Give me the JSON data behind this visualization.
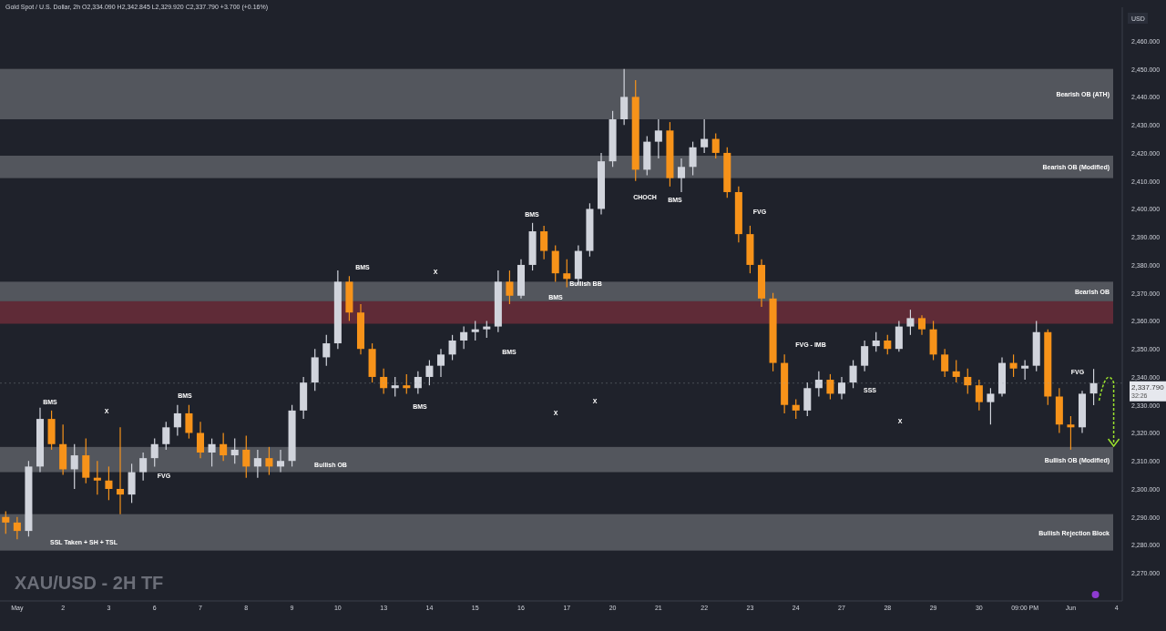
{
  "chart_data": {
    "type": "candlestick",
    "title": "XAU/USD - 2H TF",
    "subtitle": "Gold Spot / U.S. Dollar, 2h  O2,334.090 H2,342.845 L2,329.920 C2,337.790 +3.700 (+0.16%)",
    "ylabel": "USD",
    "categories": [
      null,
      "May",
      null,
      null,
      null,
      "2",
      null,
      null,
      null,
      "3",
      null,
      null,
      null,
      "6",
      null,
      null,
      null,
      "7",
      null,
      null,
      null,
      "8",
      null,
      null,
      null,
      "9",
      null,
      null,
      null,
      "10",
      null,
      null,
      null,
      "13",
      null,
      null,
      null,
      "14",
      null,
      null,
      null,
      "15",
      null,
      null,
      null,
      "16",
      null,
      null,
      null,
      "17",
      null,
      null,
      null,
      "20",
      null,
      null,
      null,
      "21",
      null,
      null,
      null,
      "22",
      null,
      null,
      null,
      "23",
      null,
      null,
      null,
      "24",
      null,
      null,
      null,
      "27",
      null,
      null,
      null,
      "28",
      null,
      null,
      null,
      "29",
      null,
      null,
      null,
      "30",
      null,
      null,
      null,
      "09:00 PM",
      null,
      null,
      null,
      "Jun",
      null,
      null,
      null,
      "4"
    ],
    "ohlc": [
      [
        2290,
        2292,
        2284,
        2288
      ],
      [
        2288,
        2290,
        2282,
        2285
      ],
      [
        2285,
        2310,
        2283,
        2308
      ],
      [
        2308,
        2329,
        2306,
        2325
      ],
      [
        2325,
        2328,
        2314,
        2316
      ],
      [
        2316,
        2323,
        2305,
        2307
      ],
      [
        2307,
        2316,
        2300,
        2312
      ],
      [
        2312,
        2318,
        2302,
        2304
      ],
      [
        2304,
        2310,
        2298,
        2303
      ],
      [
        2303,
        2308,
        2296,
        2300
      ],
      [
        2300,
        2322,
        2291,
        2298
      ],
      [
        2298,
        2309,
        2295,
        2306
      ],
      [
        2306,
        2313,
        2303,
        2311
      ],
      [
        2311,
        2318,
        2308,
        2316
      ],
      [
        2316,
        2324,
        2314,
        2322
      ],
      [
        2322,
        2330,
        2319,
        2327
      ],
      [
        2327,
        2330,
        2318,
        2320
      ],
      [
        2320,
        2324,
        2311,
        2313
      ],
      [
        2313,
        2318,
        2308,
        2316
      ],
      [
        2316,
        2320,
        2310,
        2312
      ],
      [
        2312,
        2318,
        2309,
        2314
      ],
      [
        2314,
        2319,
        2304,
        2308
      ],
      [
        2308,
        2314,
        2304,
        2311
      ],
      [
        2311,
        2315,
        2305,
        2308
      ],
      [
        2308,
        2314,
        2306,
        2310
      ],
      [
        2310,
        2330,
        2308,
        2328
      ],
      [
        2328,
        2340,
        2325,
        2338
      ],
      [
        2338,
        2350,
        2335,
        2347
      ],
      [
        2347,
        2355,
        2344,
        2352
      ],
      [
        2352,
        2378,
        2350,
        2374
      ],
      [
        2374,
        2376,
        2360,
        2363
      ],
      [
        2363,
        2366,
        2348,
        2350
      ],
      [
        2350,
        2352,
        2338,
        2340
      ],
      [
        2340,
        2343,
        2334,
        2336
      ],
      [
        2336,
        2340,
        2333,
        2337
      ],
      [
        2337,
        2341,
        2334,
        2336
      ],
      [
        2336,
        2342,
        2334,
        2340
      ],
      [
        2340,
        2346,
        2337,
        2344
      ],
      [
        2344,
        2350,
        2340,
        2348
      ],
      [
        2348,
        2355,
        2346,
        2353
      ],
      [
        2353,
        2358,
        2350,
        2356
      ],
      [
        2356,
        2360,
        2353,
        2357
      ],
      [
        2357,
        2360,
        2354,
        2358
      ],
      [
        2358,
        2378,
        2356,
        2374
      ],
      [
        2374,
        2378,
        2366,
        2369
      ],
      [
        2369,
        2382,
        2368,
        2380
      ],
      [
        2380,
        2395,
        2378,
        2392
      ],
      [
        2392,
        2394,
        2382,
        2385
      ],
      [
        2385,
        2387,
        2374,
        2377
      ],
      [
        2377,
        2382,
        2372,
        2375
      ],
      [
        2375,
        2387,
        2373,
        2385
      ],
      [
        2385,
        2402,
        2383,
        2400
      ],
      [
        2400,
        2420,
        2398,
        2417
      ],
      [
        2417,
        2435,
        2415,
        2432
      ],
      [
        2432,
        2450,
        2430,
        2440
      ],
      [
        2440,
        2446,
        2410,
        2414
      ],
      [
        2414,
        2426,
        2412,
        2424
      ],
      [
        2424,
        2432,
        2418,
        2428
      ],
      [
        2428,
        2431,
        2408,
        2411
      ],
      [
        2411,
        2418,
        2406,
        2415
      ],
      [
        2415,
        2424,
        2412,
        2422
      ],
      [
        2422,
        2432,
        2420,
        2425
      ],
      [
        2425,
        2427,
        2418,
        2420
      ],
      [
        2420,
        2422,
        2404,
        2406
      ],
      [
        2406,
        2408,
        2388,
        2391
      ],
      [
        2391,
        2394,
        2377,
        2380
      ],
      [
        2380,
        2382,
        2365,
        2368
      ],
      [
        2368,
        2370,
        2342,
        2345
      ],
      [
        2345,
        2348,
        2327,
        2330
      ],
      [
        2330,
        2332,
        2325,
        2328
      ],
      [
        2328,
        2338,
        2326,
        2336
      ],
      [
        2336,
        2342,
        2333,
        2339
      ],
      [
        2339,
        2341,
        2332,
        2334
      ],
      [
        2334,
        2340,
        2332,
        2338
      ],
      [
        2338,
        2346,
        2336,
        2344
      ],
      [
        2344,
        2353,
        2342,
        2351
      ],
      [
        2351,
        2356,
        2349,
        2353
      ],
      [
        2353,
        2355,
        2348,
        2350
      ],
      [
        2350,
        2360,
        2349,
        2358
      ],
      [
        2358,
        2364,
        2355,
        2361
      ],
      [
        2361,
        2362,
        2355,
        2357
      ],
      [
        2357,
        2360,
        2346,
        2348
      ],
      [
        2348,
        2350,
        2340,
        2342
      ],
      [
        2342,
        2346,
        2338,
        2340
      ],
      [
        2340,
        2343,
        2334,
        2337
      ],
      [
        2337,
        2339,
        2328,
        2331
      ],
      [
        2331,
        2336,
        2323,
        2334
      ],
      [
        2334,
        2347,
        2333,
        2345
      ],
      [
        2345,
        2348,
        2340,
        2343
      ],
      [
        2343,
        2346,
        2339,
        2344
      ],
      [
        2344,
        2360,
        2342,
        2356
      ],
      [
        2356,
        2357,
        2330,
        2333
      ],
      [
        2333,
        2336,
        2320,
        2323
      ],
      [
        2323,
        2326,
        2314,
        2322
      ],
      [
        2322,
        2335,
        2320,
        2334
      ],
      [
        2334.09,
        2342.845,
        2329.92,
        2337.79
      ],
      null,
      null
    ],
    "ylim": [
      2260,
      2472
    ],
    "yticks": [
      {
        "value": 2270,
        "label": "2,270.000"
      },
      {
        "value": 2280,
        "label": "2,280.000"
      },
      {
        "value": 2290,
        "label": "2,290.000"
      },
      {
        "value": 2300,
        "label": "2,300.000"
      },
      {
        "value": 2310,
        "label": "2,310.000"
      },
      {
        "value": 2320,
        "label": "2,320.000"
      },
      {
        "value": 2330,
        "label": "2,330.000"
      },
      {
        "value": 2340,
        "label": "2,340.000"
      },
      {
        "value": 2350,
        "label": "2,350.000"
      },
      {
        "value": 2360,
        "label": "2,360.000"
      },
      {
        "value": 2370,
        "label": "2,370.000"
      },
      {
        "value": 2380,
        "label": "2,380.000"
      },
      {
        "value": 2390,
        "label": "2,390.000"
      },
      {
        "value": 2400,
        "label": "2,400.000"
      },
      {
        "value": 2410,
        "label": "2,410.000"
      },
      {
        "value": 2420,
        "label": "2,420.000"
      },
      {
        "value": 2430,
        "label": "2,430.000"
      },
      {
        "value": 2440,
        "label": "2,440.000"
      },
      {
        "value": 2450,
        "label": "2,450.000"
      },
      {
        "value": 2460,
        "label": "2,460.000"
      }
    ],
    "bands": [
      {
        "axis": "y",
        "from": 2432,
        "to": 2450,
        "label": "Bearish OB (ATH)",
        "color": "#5d5f66"
      },
      {
        "axis": "y",
        "from": 2411,
        "to": 2419,
        "label": "Bearish OB (Modified)",
        "color": "#5d5f66"
      },
      {
        "axis": "y",
        "from": 2367,
        "to": 2374,
        "label": "Bearish OB",
        "color": "#5d5f66"
      },
      {
        "axis": "y",
        "from": 2359,
        "to": 2367,
        "color": "#6b2d3a"
      },
      {
        "axis": "y",
        "from": 2306,
        "to": 2315,
        "label": "Bullish OB (Modified)",
        "color": "#5d5f66"
      },
      {
        "axis": "y",
        "from": 2278,
        "to": 2291,
        "label": "Bullish Rejection Block",
        "color": "#5d5f66"
      }
    ],
    "ref_lines": [
      {
        "axis": "y",
        "value": 2337.79,
        "label": "2,337.790",
        "line_style": "dotted"
      }
    ],
    "annotations": [
      "32:26",
      "BMS",
      "X",
      "BMS",
      "FVG",
      "SSL Taken + SH + TSL",
      "Bullish OB",
      "BMS",
      "X",
      "BMS",
      "X",
      "X",
      "BMS",
      "BMS",
      "BMS",
      "Bullish BB",
      "CHOCH",
      "BMS",
      "FVG",
      "FVG - IMB",
      "SSS",
      "X",
      "FVG"
    ]
  }
}
